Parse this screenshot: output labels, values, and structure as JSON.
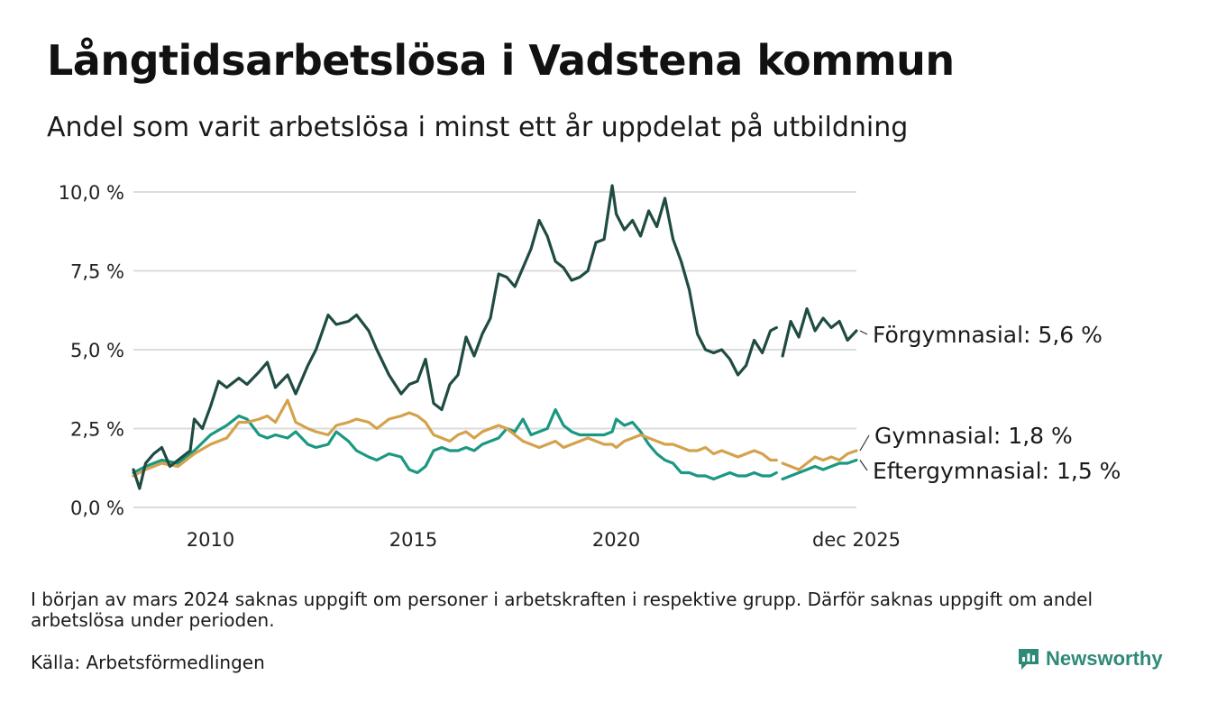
{
  "title": "Långtidsarbetslösa i Vadstena kommun",
  "subtitle": "Andel som varit arbetslösa i minst ett år uppdelat på utbildning",
  "note": "I början av mars 2024 saknas uppgift om personer i arbetskraften i respektive grupp. Därför saknas uppgift om andel arbetslösa under perioden.",
  "source": "Källa: Arbetsförmedlingen",
  "brand": {
    "name": "Newsworthy",
    "icon": "newsworthy-logo-icon"
  },
  "colors": {
    "forgymnasial": "#1f4b43",
    "gymnasial": "#d4a24c",
    "eftergymnasial": "#1a9882",
    "grid": "#dcdcdc"
  },
  "chart_data": {
    "type": "line",
    "title": "Långtidsarbetslösa i Vadstena kommun",
    "xlabel": "",
    "ylabel": "",
    "xlim": [
      2008.1,
      2025.92
    ],
    "ylim": [
      0,
      10
    ],
    "y_ticks": [
      0,
      2.5,
      5,
      7.5,
      10
    ],
    "y_tick_labels": [
      "0,0 %",
      "2,5 %",
      "5,0 %",
      "7,5 %",
      "10,0 %"
    ],
    "x_ticks": [
      2010,
      2015,
      2020,
      2025.92
    ],
    "x_tick_labels": [
      "2010",
      "2015",
      "2020",
      "dec 2025"
    ],
    "gap": [
      2023.95,
      2024.1
    ],
    "series": [
      {
        "name": "Förgymnasial",
        "label": "Förgymnasial: 5,6 %",
        "color": "#1f4b43",
        "x": [
          2008.1,
          2008.25,
          2008.4,
          2008.6,
          2008.8,
          2009.0,
          2009.2,
          2009.5,
          2009.6,
          2009.8,
          2010.0,
          2010.2,
          2010.4,
          2010.7,
          2010.9,
          2011.2,
          2011.4,
          2011.6,
          2011.9,
          2012.1,
          2012.4,
          2012.6,
          2012.9,
          2013.1,
          2013.4,
          2013.6,
          2013.9,
          2014.1,
          2014.4,
          2014.7,
          2014.9,
          2015.1,
          2015.3,
          2015.5,
          2015.7,
          2015.9,
          2016.1,
          2016.3,
          2016.5,
          2016.7,
          2016.9,
          2017.1,
          2017.3,
          2017.5,
          2017.7,
          2017.9,
          2018.1,
          2018.3,
          2018.5,
          2018.7,
          2018.9,
          2019.1,
          2019.3,
          2019.5,
          2019.7,
          2019.9,
          2020.0,
          2020.2,
          2020.4,
          2020.6,
          2020.8,
          2021.0,
          2021.2,
          2021.4,
          2021.6,
          2021.8,
          2022.0,
          2022.2,
          2022.4,
          2022.6,
          2022.8,
          2023.0,
          2023.2,
          2023.4,
          2023.6,
          2023.8,
          2023.95,
          2024.1,
          2024.3,
          2024.5,
          2024.7,
          2024.9,
          2025.1,
          2025.3,
          2025.5,
          2025.7,
          2025.92
        ],
        "values": [
          1.2,
          0.6,
          1.4,
          1.7,
          1.9,
          1.3,
          1.5,
          1.8,
          2.8,
          2.5,
          3.2,
          4.0,
          3.8,
          4.1,
          3.9,
          4.3,
          4.6,
          3.8,
          4.2,
          3.6,
          4.5,
          5.0,
          6.1,
          5.8,
          5.9,
          6.1,
          5.6,
          5.0,
          4.2,
          3.6,
          3.9,
          4.0,
          4.7,
          3.3,
          3.1,
          3.9,
          4.2,
          5.4,
          4.8,
          5.5,
          6.0,
          7.4,
          7.3,
          7.0,
          7.6,
          8.2,
          9.1,
          8.6,
          7.8,
          7.6,
          7.2,
          7.3,
          7.5,
          8.4,
          8.5,
          10.2,
          9.3,
          8.8,
          9.1,
          8.6,
          9.4,
          8.9,
          9.8,
          8.5,
          7.8,
          6.9,
          5.5,
          5.0,
          4.9,
          5.0,
          4.7,
          4.2,
          4.5,
          5.3,
          4.9,
          5.6,
          5.7,
          4.8,
          5.9,
          5.4,
          6.3,
          5.6,
          6.0,
          5.7,
          5.9,
          5.3,
          5.6
        ]
      },
      {
        "name": "Gymnasial",
        "label": "Gymnasial: 1,8 %",
        "color": "#d4a24c",
        "x": [
          2008.1,
          2008.4,
          2008.8,
          2009.2,
          2009.6,
          2010.0,
          2010.4,
          2010.7,
          2010.9,
          2011.2,
          2011.4,
          2011.6,
          2011.9,
          2012.1,
          2012.4,
          2012.6,
          2012.9,
          2013.1,
          2013.4,
          2013.6,
          2013.9,
          2014.1,
          2014.4,
          2014.7,
          2014.9,
          2015.1,
          2015.3,
          2015.5,
          2015.7,
          2015.9,
          2016.1,
          2016.3,
          2016.5,
          2016.7,
          2016.9,
          2017.1,
          2017.3,
          2017.5,
          2017.7,
          2017.9,
          2018.1,
          2018.3,
          2018.5,
          2018.7,
          2018.9,
          2019.1,
          2019.3,
          2019.5,
          2019.7,
          2019.9,
          2020.0,
          2020.2,
          2020.4,
          2020.6,
          2020.8,
          2021.0,
          2021.2,
          2021.4,
          2021.6,
          2021.8,
          2022.0,
          2022.2,
          2022.4,
          2022.6,
          2022.8,
          2023.0,
          2023.2,
          2023.4,
          2023.6,
          2023.8,
          2023.95,
          2024.1,
          2024.3,
          2024.5,
          2024.7,
          2024.9,
          2025.1,
          2025.3,
          2025.5,
          2025.7,
          2025.92
        ],
        "values": [
          1.0,
          1.2,
          1.4,
          1.3,
          1.7,
          2.0,
          2.2,
          2.7,
          2.7,
          2.8,
          2.9,
          2.7,
          3.4,
          2.7,
          2.5,
          2.4,
          2.3,
          2.6,
          2.7,
          2.8,
          2.7,
          2.5,
          2.8,
          2.9,
          3.0,
          2.9,
          2.7,
          2.3,
          2.2,
          2.1,
          2.3,
          2.4,
          2.2,
          2.4,
          2.5,
          2.6,
          2.5,
          2.3,
          2.1,
          2.0,
          1.9,
          2.0,
          2.1,
          1.9,
          2.0,
          2.1,
          2.2,
          2.1,
          2.0,
          2.0,
          1.9,
          2.1,
          2.2,
          2.3,
          2.2,
          2.1,
          2.0,
          2.0,
          1.9,
          1.8,
          1.8,
          1.9,
          1.7,
          1.8,
          1.7,
          1.6,
          1.7,
          1.8,
          1.7,
          1.5,
          1.5,
          1.4,
          1.3,
          1.2,
          1.4,
          1.6,
          1.5,
          1.6,
          1.5,
          1.7,
          1.8
        ]
      },
      {
        "name": "Eftergymnasial",
        "label": "Eftergymnasial: 1,5 %",
        "color": "#1a9882",
        "x": [
          2008.1,
          2008.4,
          2008.8,
          2009.2,
          2009.6,
          2010.0,
          2010.4,
          2010.7,
          2010.9,
          2011.2,
          2011.4,
          2011.6,
          2011.9,
          2012.1,
          2012.4,
          2012.6,
          2012.9,
          2013.1,
          2013.4,
          2013.6,
          2013.9,
          2014.1,
          2014.4,
          2014.7,
          2014.9,
          2015.1,
          2015.3,
          2015.5,
          2015.7,
          2015.9,
          2016.1,
          2016.3,
          2016.5,
          2016.7,
          2016.9,
          2017.1,
          2017.3,
          2017.5,
          2017.7,
          2017.9,
          2018.1,
          2018.3,
          2018.5,
          2018.7,
          2018.9,
          2019.1,
          2019.3,
          2019.5,
          2019.7,
          2019.9,
          2020.0,
          2020.2,
          2020.4,
          2020.6,
          2020.8,
          2021.0,
          2021.2,
          2021.4,
          2021.6,
          2021.8,
          2022.0,
          2022.2,
          2022.4,
          2022.6,
          2022.8,
          2023.0,
          2023.2,
          2023.4,
          2023.6,
          2023.8,
          2023.95,
          2024.1,
          2024.3,
          2024.5,
          2024.7,
          2024.9,
          2025.1,
          2025.3,
          2025.5,
          2025.7,
          2025.92
        ],
        "values": [
          1.1,
          1.3,
          1.5,
          1.4,
          1.8,
          2.3,
          2.6,
          2.9,
          2.8,
          2.3,
          2.2,
          2.3,
          2.2,
          2.4,
          2.0,
          1.9,
          2.0,
          2.4,
          2.1,
          1.8,
          1.6,
          1.5,
          1.7,
          1.6,
          1.2,
          1.1,
          1.3,
          1.8,
          1.9,
          1.8,
          1.8,
          1.9,
          1.8,
          2.0,
          2.1,
          2.2,
          2.5,
          2.4,
          2.8,
          2.3,
          2.4,
          2.5,
          3.1,
          2.6,
          2.4,
          2.3,
          2.3,
          2.3,
          2.3,
          2.4,
          2.8,
          2.6,
          2.7,
          2.4,
          2.0,
          1.7,
          1.5,
          1.4,
          1.1,
          1.1,
          1.0,
          1.0,
          0.9,
          1.0,
          1.1,
          1.0,
          1.0,
          1.1,
          1.0,
          1.0,
          1.1,
          0.9,
          1.0,
          1.1,
          1.2,
          1.3,
          1.2,
          1.3,
          1.4,
          1.4,
          1.5
        ]
      }
    ]
  }
}
